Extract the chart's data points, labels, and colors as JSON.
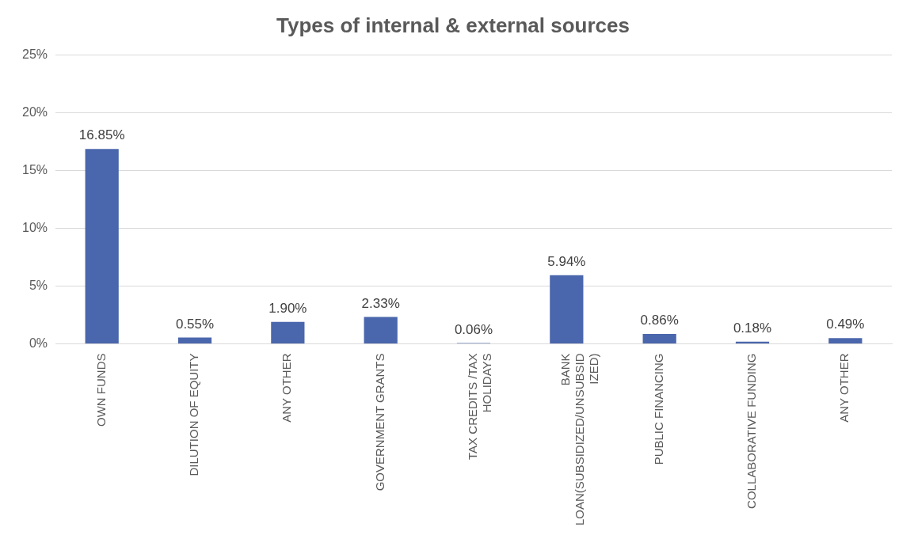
{
  "chart_data": {
    "type": "bar",
    "title": "Types of internal & external sources",
    "categories": [
      "OWN FUNDS",
      "DILUTION OF EQUITY",
      "ANY OTHER",
      "GOVERNMENT GRANTS",
      "TAX CREDITS /TAX HOLIDAYS",
      "BANK LOAN(SUBSIDIZED/UNSUBSIDIZED)",
      "PUBLIC FINANCING",
      "COLLABORATIVE FUNDING",
      "ANY OTHER"
    ],
    "values": [
      16.85,
      0.55,
      1.9,
      2.33,
      0.06,
      5.94,
      0.86,
      0.18,
      0.49
    ],
    "value_labels": [
      "16.85%",
      "0.55%",
      "1.90%",
      "2.33%",
      "0.06%",
      "5.94%",
      "0.86%",
      "0.18%",
      "0.49%"
    ],
    "color": "#4a66ac",
    "ylim": [
      0,
      25
    ],
    "yticks": [
      {
        "value": 0,
        "label": "0%"
      },
      {
        "value": 5,
        "label": "5%"
      },
      {
        "value": 10,
        "label": "10%"
      },
      {
        "value": 15,
        "label": "15%"
      },
      {
        "value": 20,
        "label": "20%"
      },
      {
        "value": 25,
        "label": "25%"
      }
    ],
    "grid": "y",
    "legend": false
  }
}
